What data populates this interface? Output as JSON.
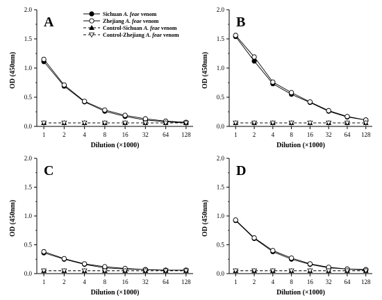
{
  "legend": [
    {
      "prefix": "Sichuan ",
      "italic": "A. feae",
      "suffix": " venom",
      "marker": "circle-filled",
      "dash": false
    },
    {
      "prefix": "Zhejiang ",
      "italic": "A. feae",
      "suffix": " venom",
      "marker": "circle-open",
      "dash": false
    },
    {
      "prefix": "Control-Sichuan ",
      "italic": "A. feae",
      "suffix": " venom",
      "marker": "triangle-up-filled",
      "dash": true
    },
    {
      "prefix": "Control-Zhejiang ",
      "italic": "A. feae",
      "suffix": " venom",
      "marker": "triangle-down-open",
      "dash": true
    }
  ],
  "chart_data": [
    {
      "type": "line",
      "panel": "A",
      "xlabel": "Dilution (×1000)",
      "ylabel": "OD (450nm)",
      "categories": [
        "1",
        "2",
        "4",
        "8",
        "16",
        "32",
        "64",
        "128"
      ],
      "yticks": [
        "0.0",
        "0.5",
        "1.0",
        "1.5",
        "2.0"
      ],
      "ylim": [
        0,
        2.0
      ],
      "series": [
        {
          "name": "Sichuan A. feae venom",
          "values": [
            1.11,
            0.69,
            0.42,
            0.26,
            0.17,
            0.11,
            0.08,
            0.06
          ]
        },
        {
          "name": "Zhejiang A. feae venom",
          "values": [
            1.15,
            0.71,
            0.43,
            0.28,
            0.19,
            0.13,
            0.09,
            0.07
          ]
        },
        {
          "name": "Control-Sichuan A. feae venom",
          "values": [
            0.06,
            0.06,
            0.06,
            0.06,
            0.06,
            0.06,
            0.06,
            0.06
          ]
        },
        {
          "name": "Control-Zhejiang A. feae venom",
          "values": [
            0.06,
            0.06,
            0.06,
            0.06,
            0.06,
            0.06,
            0.06,
            0.06
          ]
        }
      ]
    },
    {
      "type": "line",
      "panel": "B",
      "xlabel": "Dilution (×1000)",
      "ylabel": "OD (450nm)",
      "categories": [
        "1",
        "2",
        "4",
        "8",
        "16",
        "32",
        "64",
        "128"
      ],
      "yticks": [
        "0.0",
        "0.5",
        "1.0",
        "1.5",
        "2.0"
      ],
      "ylim": [
        0,
        2.0
      ],
      "series": [
        {
          "name": "Sichuan A. feae venom",
          "values": [
            1.54,
            1.12,
            0.73,
            0.55,
            0.41,
            0.26,
            0.16,
            0.11
          ]
        },
        {
          "name": "Zhejiang A. feae venom",
          "values": [
            1.56,
            1.19,
            0.76,
            0.58,
            0.42,
            0.27,
            0.17,
            0.11
          ]
        },
        {
          "name": "Control-Sichuan A. feae venom",
          "values": [
            0.06,
            0.06,
            0.06,
            0.06,
            0.06,
            0.06,
            0.06,
            0.06
          ]
        },
        {
          "name": "Control-Zhejiang A. feae venom",
          "values": [
            0.06,
            0.06,
            0.06,
            0.06,
            0.06,
            0.06,
            0.06,
            0.06
          ]
        }
      ]
    },
    {
      "type": "line",
      "panel": "C",
      "xlabel": "Dilution (×1000)",
      "ylabel": "OD (450nm)",
      "categories": [
        "1",
        "2",
        "4",
        "8",
        "16",
        "32",
        "64",
        "128"
      ],
      "yticks": [
        "0.0",
        "0.5",
        "1.0",
        "1.5",
        "2.0"
      ],
      "ylim": [
        0,
        2.0
      ],
      "series": [
        {
          "name": "Sichuan A. feae venom",
          "values": [
            0.36,
            0.25,
            0.16,
            0.1,
            0.08,
            0.07,
            0.06,
            0.06
          ]
        },
        {
          "name": "Zhejiang A. feae venom",
          "values": [
            0.38,
            0.26,
            0.17,
            0.12,
            0.09,
            0.07,
            0.06,
            0.06
          ]
        },
        {
          "name": "Control-Sichuan A. feae venom",
          "values": [
            0.05,
            0.05,
            0.05,
            0.05,
            0.05,
            0.05,
            0.05,
            0.05
          ]
        },
        {
          "name": "Control-Zhejiang A. feae venom",
          "values": [
            0.05,
            0.05,
            0.05,
            0.05,
            0.05,
            0.05,
            0.05,
            0.05
          ]
        }
      ]
    },
    {
      "type": "line",
      "panel": "D",
      "xlabel": "Dilution (×1000)",
      "ylabel": "OD (450nm)",
      "categories": [
        "1",
        "2",
        "4",
        "8",
        "16",
        "32",
        "64",
        "128"
      ],
      "yticks": [
        "0.0",
        "0.5",
        "1.0",
        "1.5",
        "2.0"
      ],
      "ylim": [
        0,
        2.0
      ],
      "series": [
        {
          "name": "Sichuan A. feae venom",
          "values": [
            0.92,
            0.61,
            0.38,
            0.25,
            0.16,
            0.1,
            0.08,
            0.06
          ]
        },
        {
          "name": "Zhejiang A. feae venom",
          "values": [
            0.93,
            0.62,
            0.4,
            0.27,
            0.17,
            0.11,
            0.08,
            0.07
          ]
        },
        {
          "name": "Control-Sichuan A. feae venom",
          "values": [
            0.05,
            0.05,
            0.05,
            0.05,
            0.05,
            0.05,
            0.05,
            0.05
          ]
        },
        {
          "name": "Control-Zhejiang A. feae venom",
          "values": [
            0.05,
            0.05,
            0.05,
            0.05,
            0.05,
            0.05,
            0.05,
            0.05
          ]
        }
      ]
    }
  ]
}
